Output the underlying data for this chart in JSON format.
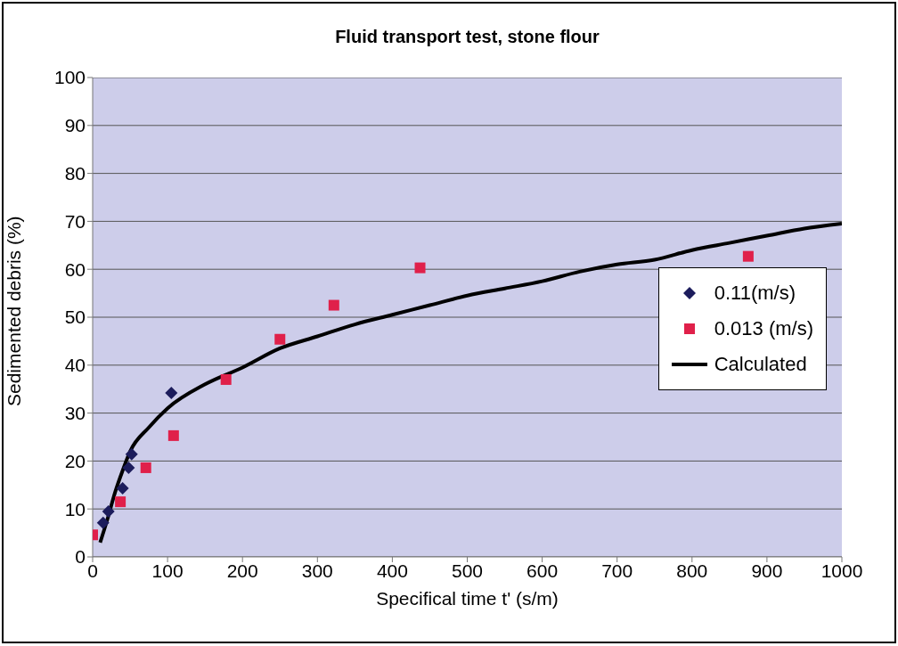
{
  "chart_data": {
    "type": "scatter",
    "title": "Fluid transport test, stone flour",
    "xlabel": "Specifical time t' (s/m)",
    "ylabel": "Sedimented debris (%)",
    "xlim": [
      0,
      1000
    ],
    "xticks": [
      0,
      100,
      200,
      300,
      400,
      500,
      600,
      700,
      800,
      900,
      1000
    ],
    "ylim": [
      0,
      100
    ],
    "yticks": [
      0,
      10,
      20,
      30,
      40,
      50,
      60,
      70,
      80,
      90,
      100
    ],
    "grid": "y",
    "legend": "right",
    "series": [
      {
        "name": "0.11(m/s)",
        "marker": "diamond",
        "color": "#1c1c5c",
        "x": [
          14,
          21,
          40,
          48,
          52,
          105
        ],
        "values": [
          7.1,
          9.5,
          14.3,
          18.6,
          21.4,
          34.2
        ]
      },
      {
        "name": "0.013 (m/s)",
        "marker": "square",
        "color": "#e0204a",
        "x": [
          0,
          37,
          71,
          108,
          178,
          250,
          322,
          437,
          875
        ],
        "values": [
          4.6,
          11.5,
          18.6,
          25.3,
          37,
          45.4,
          52.5,
          60.3,
          62.7
        ]
      },
      {
        "name": "Calculated",
        "type": "line",
        "marker": "none",
        "line_style": "solid",
        "color": "#000000",
        "x": [
          10,
          20,
          30,
          40,
          50,
          75,
          100,
          150,
          200,
          250,
          300,
          350,
          400,
          450,
          500,
          550,
          600,
          650,
          700,
          750,
          800,
          850,
          900,
          950,
          1000
        ],
        "values": [
          3,
          8,
          13.5,
          18,
          22,
          27,
          31,
          36,
          39.5,
          43.5,
          46,
          48.5,
          50.5,
          52.5,
          54.5,
          56,
          57.5,
          59.5,
          61,
          62,
          64,
          65.5,
          67,
          68.5,
          69.5
        ]
      }
    ]
  }
}
